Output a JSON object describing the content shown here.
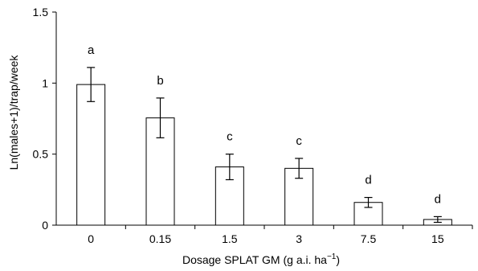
{
  "chart_data": {
    "type": "bar",
    "title": "",
    "xlabel": "Dosage SPLAT GM (g a.i. ha",
    "xlabel_superscript": "−1",
    "xlabel_suffix": ")",
    "ylabel": "Ln(males+1)/trap/week",
    "ylim": [
      0,
      1.5
    ],
    "yticks": [
      "0",
      "0.5",
      "1",
      "1.5"
    ],
    "categories": [
      "0",
      "0.15",
      "1.5",
      "3",
      "7.5",
      "15"
    ],
    "values": [
      0.99,
      0.755,
      0.41,
      0.4,
      0.16,
      0.04
    ],
    "errors": [
      0.12,
      0.14,
      0.09,
      0.07,
      0.035,
      0.02
    ],
    "significance_letters": [
      "a",
      "b",
      "c",
      "c",
      "d",
      "d"
    ],
    "grid": false,
    "colors": {
      "bar_fill": "#ffffff",
      "bar_stroke": "#000000",
      "axis": "#000000"
    }
  }
}
